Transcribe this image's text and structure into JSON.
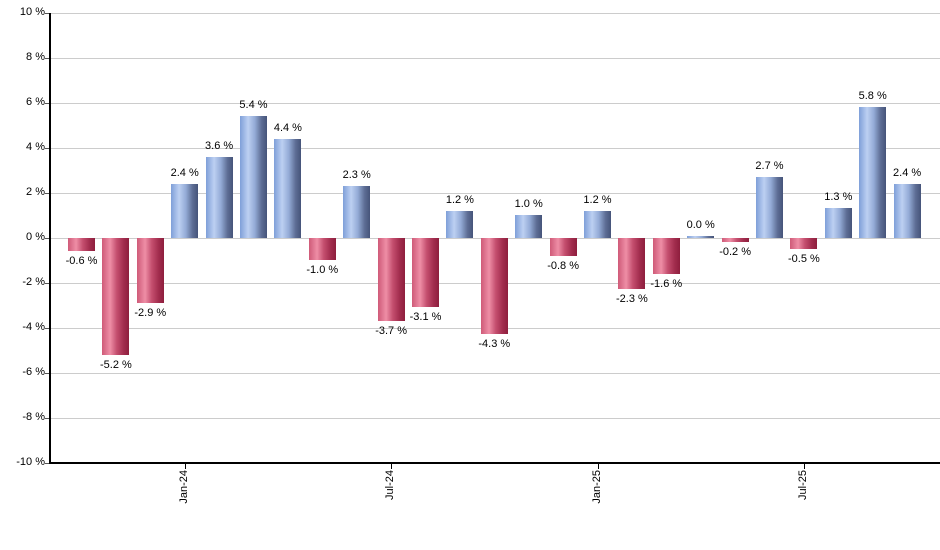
{
  "chart_data": {
    "type": "bar",
    "title": "",
    "xlabel": "",
    "ylabel": "",
    "ylim": [
      -10,
      10
    ],
    "grid": "horizontal",
    "legend": "none",
    "y_ticks": [
      {
        "value": 10,
        "label": "10 %"
      },
      {
        "value": 8,
        "label": "8 %"
      },
      {
        "value": 6,
        "label": "6 %"
      },
      {
        "value": 4,
        "label": "4 %"
      },
      {
        "value": 2,
        "label": "2 %"
      },
      {
        "value": 0,
        "label": "0 %"
      },
      {
        "value": -2,
        "label": "-2 %"
      },
      {
        "value": -4,
        "label": "-4 %"
      },
      {
        "value": -6,
        "label": "-6 %"
      },
      {
        "value": -8,
        "label": "-8 %"
      },
      {
        "value": -10,
        "label": "-10 %"
      }
    ],
    "x_ticks": [
      {
        "index": 3,
        "label": "Jan-24"
      },
      {
        "index": 9,
        "label": "Jul-24"
      },
      {
        "index": 15,
        "label": "Jan-25"
      },
      {
        "index": 21,
        "label": "Jul-25"
      }
    ],
    "points": [
      {
        "month": "Oct-23",
        "value": -0.6,
        "label": "-0.6 %"
      },
      {
        "month": "Nov-23",
        "value": -5.2,
        "label": "-5.2 %"
      },
      {
        "month": "Dec-23",
        "value": -2.9,
        "label": "-2.9 %"
      },
      {
        "month": "Jan-24",
        "value": 2.4,
        "label": "2.4 %"
      },
      {
        "month": "Feb-24",
        "value": 3.6,
        "label": "3.6 %"
      },
      {
        "month": "Mar-24",
        "value": 5.4,
        "label": "5.4 %"
      },
      {
        "month": "Apr-24",
        "value": 4.4,
        "label": "4.4 %"
      },
      {
        "month": "May-24",
        "value": -1.0,
        "label": "-1.0 %"
      },
      {
        "month": "Jun-24",
        "value": 2.3,
        "label": "2.3 %"
      },
      {
        "month": "Jul-24",
        "value": -3.7,
        "label": "-3.7 %"
      },
      {
        "month": "Aug-24",
        "value": -3.1,
        "label": "-3.1 %"
      },
      {
        "month": "Sep-24",
        "value": 1.2,
        "label": "1.2 %"
      },
      {
        "month": "Oct-24",
        "value": -4.3,
        "label": "-4.3 %"
      },
      {
        "month": "Nov-24",
        "value": 1.0,
        "label": "1.0 %"
      },
      {
        "month": "Dec-24",
        "value": -0.8,
        "label": "-0.8 %"
      },
      {
        "month": "Jan-25",
        "value": 1.2,
        "label": "1.2 %"
      },
      {
        "month": "Feb-25",
        "value": -2.3,
        "label": "-2.3 %"
      },
      {
        "month": "Mar-25",
        "value": -1.6,
        "label": "-1.6 %"
      },
      {
        "month": "Apr-25",
        "value": 0.0,
        "label": "0.0 %"
      },
      {
        "month": "May-25",
        "value": -0.2,
        "label": "-0.2 %"
      },
      {
        "month": "Jun-25",
        "value": 2.7,
        "label": "2.7 %"
      },
      {
        "month": "Jul-25",
        "value": -0.5,
        "label": "-0.5 %"
      },
      {
        "month": "Aug-25",
        "value": 1.3,
        "label": "1.3 %"
      },
      {
        "month": "Sep-25",
        "value": 5.8,
        "label": "5.8 %"
      },
      {
        "month": "Oct-25",
        "value": 2.4,
        "label": "2.4 %"
      }
    ],
    "colors": {
      "positive_bar_light": "#bdd0f2",
      "positive_bar_dark": "#46547a",
      "positive_bar_edge": "#7e9fd8",
      "negative_bar_light": "#ee8ea6",
      "negative_bar_dark": "#8e1e3d",
      "negative_bar_edge": "#cf5a78",
      "gridline": "#cccccc",
      "axis": "#000000",
      "background": "#ffffff",
      "label_text": "#000000"
    }
  }
}
